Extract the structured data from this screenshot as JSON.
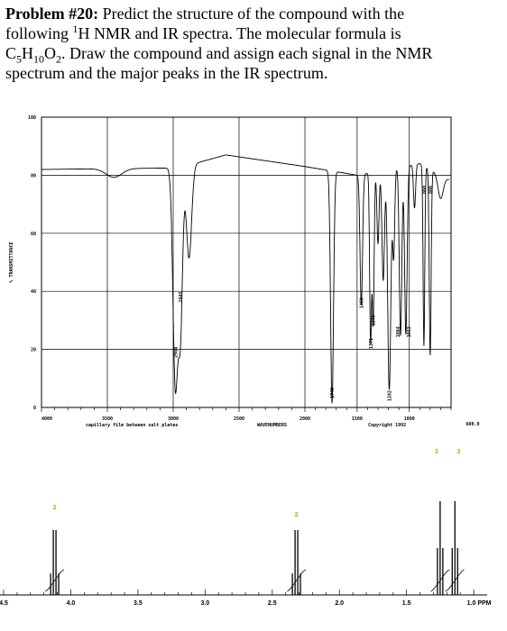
{
  "problem": {
    "heading": "Problem #20:",
    "line1": "Predict the structure of the compound with the",
    "line2a": "following ",
    "line2_sup": "1",
    "line2b": "H NMR and IR spectra.  The molecular formula is",
    "f_C": "C",
    "f_C_sub": "5",
    "f_H": "H",
    "f_H_sub": "10",
    "f_O": "O",
    "f_O_sub": "2",
    "line3b": ".  Draw the compound and assign each signal in the NMR",
    "line4": "spectrum and the major peaks in the IR spectrum."
  },
  "ir": {
    "ylabel": "% TRANSMITTANCE",
    "y_ticks": [
      "100",
      "80",
      "60",
      "40",
      "20",
      "0"
    ],
    "x_ticks": [
      "4000",
      "3500",
      "3000",
      "2500",
      "2000",
      "1500",
      "1000"
    ],
    "left_end_label": "4000",
    "right_end_label": "600.0",
    "xlabel": "WAVENUMBERS",
    "footnote_left": "capillary film between salt plates",
    "footnote_right": "Copyright 1992",
    "peak_labels": [
      "2945",
      "2984",
      "1740",
      "1460",
      "1371",
      "1346",
      "1192",
      "1084",
      "1033",
      "860",
      "800"
    ]
  },
  "nmr": {
    "x_ticks": [
      "4.5",
      "4.0",
      "3.5",
      "3.0",
      "2.5",
      "2.0",
      "1.5",
      "1.0 PPM"
    ],
    "integrations": [
      "2",
      "2",
      "3",
      "3"
    ]
  },
  "chart_data": [
    {
      "type": "line",
      "ylabel": "% TRANSMITTANCE",
      "xlabel": "WAVENUMBERS",
      "xlim": [
        4000,
        600
      ],
      "ylim": [
        0,
        100
      ],
      "grid": true,
      "x": [
        4000,
        3600,
        3400,
        3050,
        2984,
        2945,
        2880,
        2600,
        2400,
        2100,
        1900,
        1760,
        1740,
        1700,
        1500,
        1460,
        1420,
        1371,
        1346,
        1300,
        1250,
        1192,
        1150,
        1084,
        1033,
        950,
        860,
        830,
        800,
        700,
        620
      ],
      "y": [
        83,
        84,
        82,
        80,
        10,
        28,
        45,
        87,
        88,
        84,
        83,
        78,
        5,
        82,
        78,
        33,
        58,
        23,
        27,
        55,
        42,
        7,
        48,
        22,
        21,
        68,
        22,
        68,
        20,
        78,
        74
      ],
      "peak_labels": [
        "2945",
        "2984",
        "1740",
        "1460",
        "1371",
        "1346",
        "1192",
        "1084",
        "1033",
        "860",
        "800"
      ]
    },
    {
      "type": "line",
      "xlim": [
        4.5,
        0.9
      ],
      "xlabel": "PPM",
      "peaks": [
        {
          "center": 4.12,
          "multiplicity": "quartet",
          "integration": "2"
        },
        {
          "center": 2.32,
          "multiplicity": "quartet",
          "integration": "2"
        },
        {
          "center": 1.25,
          "multiplicity": "triplet",
          "integration": "3"
        },
        {
          "center": 1.14,
          "multiplicity": "triplet",
          "integration": "3"
        }
      ],
      "integrations": [
        "2",
        "2",
        "3",
        "3"
      ]
    }
  ]
}
